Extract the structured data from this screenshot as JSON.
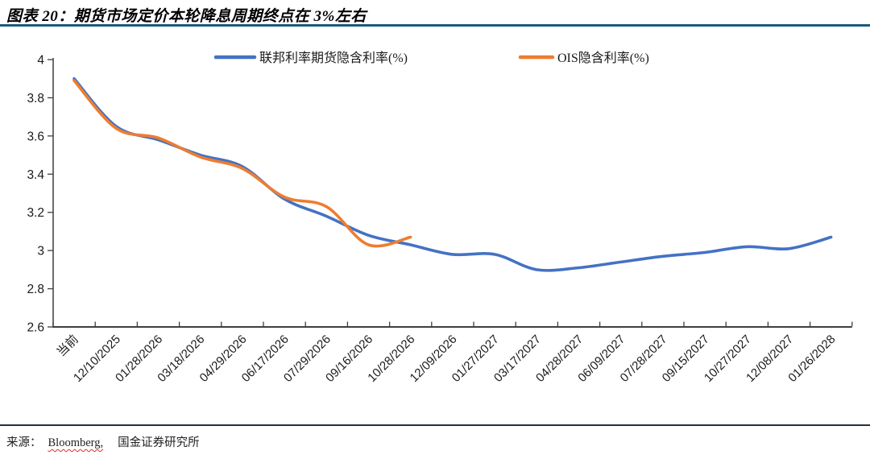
{
  "header": {
    "title": "图表 20：期货市场定价本轮降息周期终点在 3%左右"
  },
  "chart_data": {
    "type": "line",
    "title": "",
    "xlabel": "",
    "ylabel": "",
    "categories": [
      "当前",
      "12/10/2025",
      "01/28/2026",
      "03/18/2026",
      "04/29/2026",
      "06/17/2026",
      "07/29/2026",
      "09/16/2026",
      "10/28/2026",
      "12/09/2026",
      "01/27/2027",
      "03/17/2027",
      "04/28/2027",
      "06/09/2027",
      "07/28/2027",
      "09/15/2027",
      "10/27/2027",
      "12/08/2027",
      "01/26/2028"
    ],
    "series": [
      {
        "name": "联邦利率期货隐含利率(%)",
        "color": "#4472C4",
        "values": [
          3.9,
          3.65,
          3.58,
          3.5,
          3.44,
          3.27,
          3.18,
          3.08,
          3.03,
          2.98,
          2.98,
          2.9,
          2.91,
          2.94,
          2.97,
          2.99,
          3.02,
          3.01,
          3.07
        ]
      },
      {
        "name": "OIS隐含利率(%)",
        "color": "#ED7D31",
        "values": [
          3.89,
          3.64,
          3.59,
          3.49,
          3.43,
          3.28,
          3.23,
          3.03,
          3.07,
          null,
          null,
          null,
          null,
          null,
          null,
          null,
          null,
          null,
          null
        ]
      }
    ],
    "ylim": [
      2.6,
      4.0
    ],
    "yticks": [
      "4",
      "3.8",
      "3.6",
      "3.4",
      "3.2",
      "3",
      "2.8",
      "2.6"
    ],
    "x_label_rotation": -45,
    "grid": false,
    "legend_position": "top-center"
  },
  "footer": {
    "source_prefix": "来源：",
    "source_bloomberg": "Bloomberg,",
    "source_org": "国金证券研究所"
  },
  "colors": {
    "accent_rule_top": "#1B5A7B",
    "accent_rule_bottom": "#223044",
    "series_blue": "#4472C4",
    "series_orange": "#ED7D31",
    "axis": "#3F3F3F",
    "text": "#1A1A1A",
    "spellcheck_underline": "#D93025"
  }
}
